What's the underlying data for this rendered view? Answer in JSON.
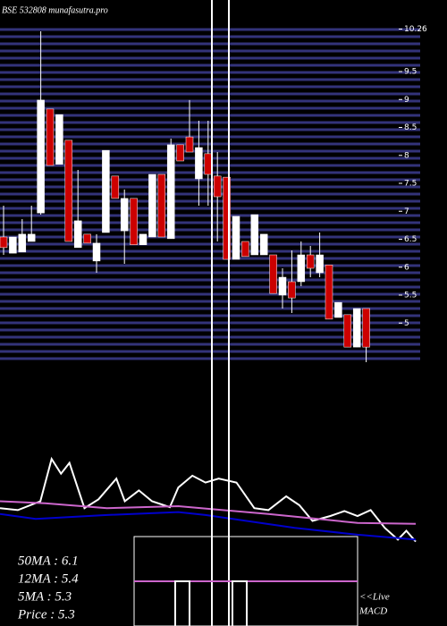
{
  "chart_data": [
    {
      "type": "candlestick",
      "title": "BSE 532808 munafasutra.pro",
      "open": [
        6.54,
        6.25,
        6.27,
        6.46,
        6.97,
        8.83,
        7.84,
        8.27,
        6.35,
        6.59,
        6.11,
        6.62,
        7.63,
        6.65,
        7.23,
        6.4,
        6.54,
        7.66,
        6.51,
        8.19,
        8.33,
        7.58,
        8.03,
        7.63,
        7.61,
        6.14,
        6.46,
        6.22,
        6.22,
        6.22,
        5.5,
        5.74,
        5.74,
        6.22,
        5.9,
        6.04,
        5.1,
        5.15,
        4.57,
        5.26
      ],
      "high": [
        7.1,
        6.54,
        6.86,
        7.1,
        10.22,
        8.83,
        8.73,
        8.27,
        7.74,
        6.59,
        6.59,
        8.09,
        7.63,
        7.39,
        7.23,
        6.59,
        7.66,
        7.66,
        8.3,
        8.19,
        8.99,
        8.62,
        8.62,
        8.06,
        7.61,
        6.91,
        6.46,
        6.94,
        6.59,
        6.22,
        5.98,
        6.3,
        6.46,
        6.38,
        6.62,
        6.04,
        5.37,
        5.15,
        5.26,
        5.26
      ],
      "low": [
        6.22,
        6.25,
        6.27,
        6.46,
        6.94,
        7.82,
        7.84,
        6.46,
        6.35,
        6.43,
        5.9,
        6.62,
        7.23,
        6.06,
        6.4,
        6.4,
        6.54,
        6.54,
        6.51,
        7.9,
        8.06,
        7.1,
        7.1,
        6.46,
        6.14,
        6.14,
        6.19,
        6.22,
        6.22,
        5.53,
        5.26,
        5.18,
        5.66,
        5.82,
        5.82,
        5.07,
        5.1,
        4.57,
        4.57,
        4.3
      ],
      "close": [
        6.35,
        6.54,
        6.59,
        6.59,
        8.99,
        7.82,
        8.73,
        6.46,
        6.83,
        6.43,
        6.43,
        8.09,
        7.23,
        7.23,
        6.4,
        6.59,
        7.66,
        6.54,
        8.19,
        7.9,
        8.06,
        8.14,
        7.66,
        7.26,
        6.14,
        6.91,
        6.19,
        6.94,
        6.59,
        5.53,
        5.82,
        5.45,
        6.22,
        5.98,
        6.22,
        5.07,
        5.37,
        4.57,
        5.26,
        4.57
      ],
      "up_color": "#ffffff",
      "down_color": "#cc0000",
      "ylim": [
        4.3,
        10.3
      ],
      "yticks": [
        {
          "value": 10.26,
          "label": "10.26"
        },
        9.5,
        9,
        8.5,
        8,
        7.5,
        7,
        6.5,
        6,
        5.5,
        5
      ],
      "grid": true
    },
    {
      "type": "line",
      "series": [
        {
          "name": "Volume",
          "color": "#ffffff",
          "x": [
            0,
            1.9,
            4.3,
            5.5,
            6.5,
            7.4,
            9,
            10.5,
            12.4,
            13.3,
            14.8,
            16.2,
            18.1,
            19,
            20.5,
            21.9,
            23.3,
            25.2,
            27.1,
            28.6,
            30.5,
            31.9,
            33.3,
            35.2,
            36.7,
            38.1,
            39.5,
            41,
            42.4,
            43.3,
            44.3
          ],
          "values": [
            38,
            36,
            45,
            88,
            73,
            84,
            38,
            47,
            68,
            45,
            56,
            45,
            39,
            59,
            71,
            64,
            68,
            64,
            38,
            36,
            50,
            41,
            25,
            30,
            35,
            30,
            36,
            18,
            6,
            15,
            4
          ]
        },
        {
          "name": "50MA",
          "color": "#cc66cc",
          "x": [
            0,
            4.8,
            11.4,
            19,
            28.6,
            38.1,
            44.3
          ],
          "values": [
            45,
            43,
            38,
            40,
            32,
            23,
            22
          ]
        },
        {
          "name": "12MA",
          "color": "#0000cc",
          "x": [
            0,
            3.8,
            11.4,
            19,
            21.9,
            24.8,
            31.4,
            38.1,
            44.3
          ],
          "values": [
            32,
            27,
            31,
            34,
            31,
            27,
            18,
            11,
            6
          ]
        }
      ],
      "xlim": [
        0,
        44.3
      ],
      "ylim": [
        0,
        100
      ],
      "annotations": [
        "50MA : 6.1",
        "12MA : 5.4",
        "5MA : 5.3",
        "Price   : 5.3"
      ],
      "live_label": "<<Live",
      "macd_label": "MACD"
    }
  ]
}
